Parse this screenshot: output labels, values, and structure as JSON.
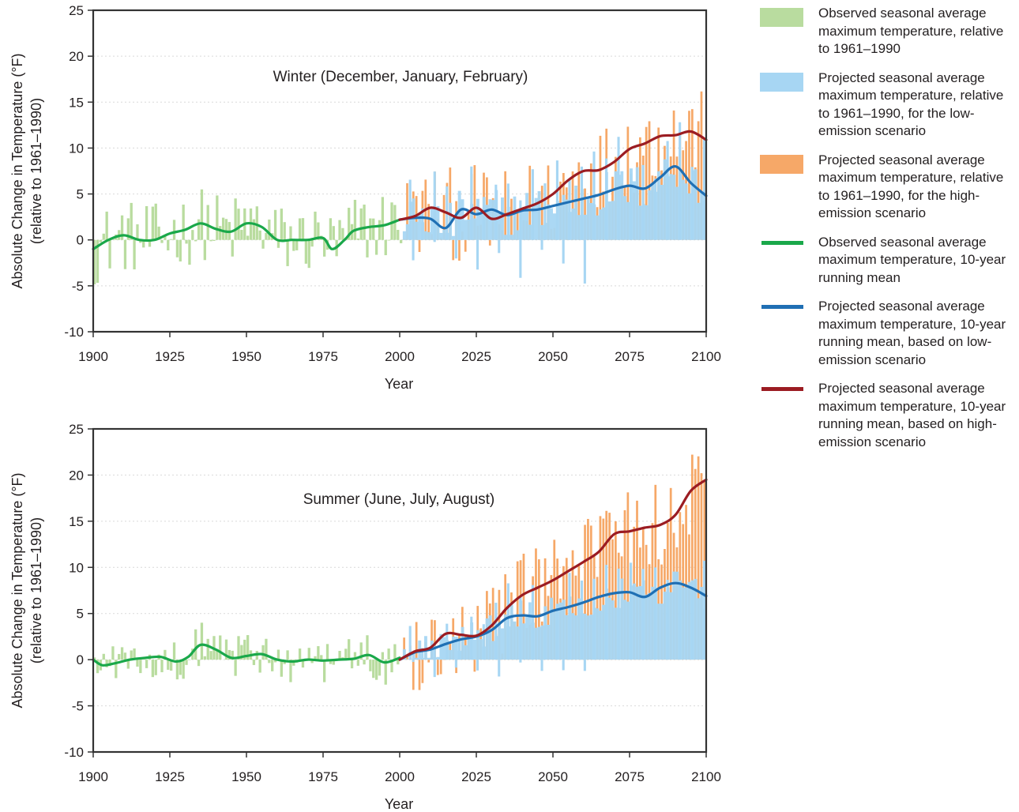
{
  "legend": {
    "items": [
      {
        "kind": "swatch",
        "color": "#b9dc9f",
        "label": "Observed seasonal average maximum temperature, relative to 1961–1990"
      },
      {
        "kind": "swatch",
        "color": "#a7d6f3",
        "label": "Projected seasonal average maximum temperature, relative to 1961–1990, for the low-emission scenario"
      },
      {
        "kind": "swatch",
        "color": "#f6a868",
        "label": "Projected seasonal average maximum temperature, relative to 1961–1990, for the high-emission scenario"
      },
      {
        "kind": "line",
        "color": "#1aa84a",
        "label": "Observed seasonal average maximum temperature, 10-year running mean"
      },
      {
        "kind": "line",
        "color": "#1f6fb4",
        "label": "Projected seasonal average maximum temperature, 10-year running mean, based on low-emission scenario"
      },
      {
        "kind": "line",
        "color": "#9b1c22",
        "label": "Projected seasonal average maximum temperature, 10-year running mean, based on high-emission scenario"
      }
    ]
  },
  "chart_data": [
    {
      "type": "line",
      "title": "Winter (December, January, February)",
      "xlabel": "Year",
      "ylabel": "Absolute Change in Temperature (°F)",
      "ylabel2": "(relative to 1961–1990)",
      "xlim": [
        1900,
        2100
      ],
      "ylim": [
        -10,
        25
      ],
      "xticks": [
        1900,
        1925,
        1950,
        1975,
        2000,
        2025,
        2050,
        2075,
        2100
      ],
      "yticks": [
        -10,
        -5,
        0,
        5,
        10,
        15,
        20,
        25
      ],
      "grid": true,
      "series": [
        {
          "role": "obs_mean",
          "x": [
            1900,
            1905,
            1910,
            1915,
            1920,
            1925,
            1930,
            1935,
            1940,
            1945,
            1950,
            1955,
            1960,
            1965,
            1970,
            1975,
            1978,
            1982,
            1985,
            1990,
            1995,
            2000
          ],
          "y": [
            -1,
            0,
            0.5,
            0,
            0,
            0.7,
            1.1,
            1.8,
            1.2,
            0.9,
            1.8,
            1.4,
            0,
            0,
            0,
            0.2,
            -1,
            0,
            1,
            1.4,
            1.6,
            2.2
          ]
        },
        {
          "role": "low_mean",
          "x": [
            2000,
            2005,
            2010,
            2015,
            2020,
            2025,
            2030,
            2035,
            2040,
            2045,
            2050,
            2055,
            2060,
            2065,
            2070,
            2075,
            2080,
            2085,
            2090,
            2095,
            2100
          ],
          "y": [
            2.2,
            2.4,
            2.3,
            1.3,
            3.3,
            2.8,
            3.3,
            2.7,
            3.2,
            3.3,
            3.7,
            4.1,
            4.5,
            4.9,
            5.5,
            5.9,
            5.6,
            6.8,
            8,
            6.2,
            4.8
          ]
        },
        {
          "role": "high_mean",
          "x": [
            2000,
            2005,
            2010,
            2015,
            2020,
            2025,
            2030,
            2035,
            2040,
            2045,
            2050,
            2055,
            2060,
            2065,
            2070,
            2075,
            2080,
            2085,
            2090,
            2095,
            2100
          ],
          "y": [
            2.2,
            2.6,
            3.5,
            3,
            2.4,
            3.5,
            2.3,
            2.8,
            3.4,
            4,
            5,
            6.5,
            7.5,
            7.6,
            8.5,
            9.9,
            10.5,
            11.3,
            11.4,
            11.8,
            10.9
          ]
        }
      ]
    },
    {
      "type": "line",
      "title": "Summer (June, July, August)",
      "xlabel": "Year",
      "ylabel": "Absolute Change in Temperature (°F)",
      "ylabel2": "(relative to 1961–1990)",
      "xlim": [
        1900,
        2100
      ],
      "ylim": [
        -10,
        25
      ],
      "xticks": [
        1900,
        1925,
        1950,
        1975,
        2000,
        2025,
        2050,
        2075,
        2100
      ],
      "yticks": [
        -10,
        -5,
        0,
        5,
        10,
        15,
        20,
        25
      ],
      "grid": true,
      "series": [
        {
          "role": "obs_mean",
          "x": [
            1900,
            1903,
            1907,
            1912,
            1917,
            1922,
            1927,
            1931,
            1935,
            1940,
            1945,
            1950,
            1955,
            1960,
            1965,
            1970,
            1975,
            1980,
            1985,
            1990,
            1995,
            2000
          ],
          "y": [
            0,
            -0.6,
            -0.4,
            0,
            0.2,
            0.3,
            -0.2,
            0.3,
            1.6,
            1.1,
            0.2,
            0.4,
            0.6,
            0,
            -0.2,
            0,
            -0.1,
            0,
            0.1,
            0.5,
            -0.3,
            0.2
          ]
        },
        {
          "role": "low_mean",
          "x": [
            2000,
            2005,
            2010,
            2015,
            2020,
            2025,
            2030,
            2035,
            2040,
            2045,
            2050,
            2055,
            2060,
            2065,
            2070,
            2075,
            2080,
            2085,
            2090,
            2095,
            2100
          ],
          "y": [
            0,
            0.8,
            1.1,
            1.7,
            2.2,
            2.5,
            3.2,
            4.5,
            4.8,
            4.7,
            5.3,
            5.7,
            6.2,
            6.8,
            7.2,
            7.3,
            6.8,
            7.8,
            8.3,
            7.8,
            6.9
          ]
        },
        {
          "role": "high_mean",
          "x": [
            2000,
            2005,
            2010,
            2015,
            2020,
            2025,
            2030,
            2035,
            2040,
            2045,
            2050,
            2055,
            2060,
            2065,
            2070,
            2075,
            2080,
            2085,
            2090,
            2095,
            2100
          ],
          "y": [
            0,
            0.9,
            1.3,
            2.8,
            2.7,
            2.6,
            3.7,
            5.6,
            7,
            7.8,
            8.6,
            9.6,
            10.6,
            11.7,
            13.6,
            13.9,
            14.3,
            14.6,
            15.7,
            18.3,
            19.5
          ]
        }
      ]
    }
  ]
}
